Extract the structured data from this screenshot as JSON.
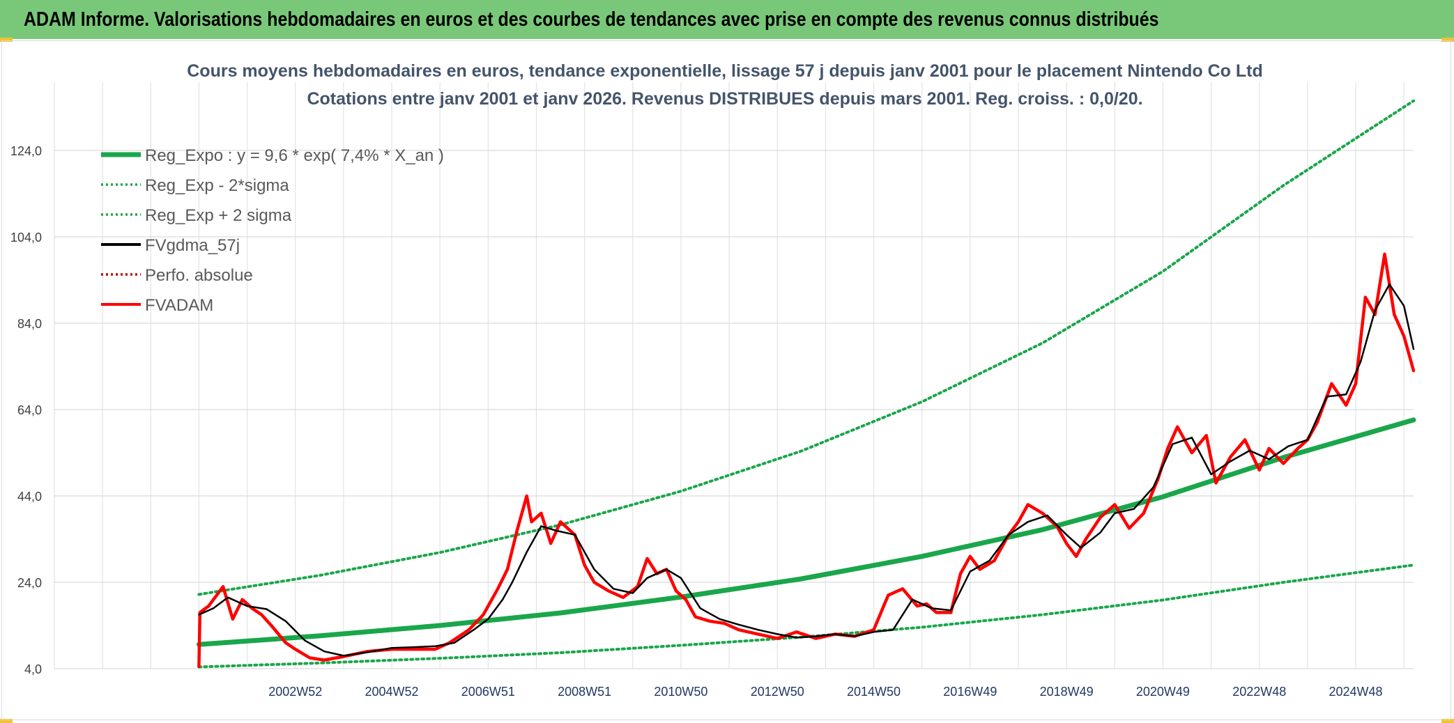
{
  "banner": {
    "title": "ADAM Informe. Valorisations hebdomadaires en euros et des courbes de tendances avec prise en compte des revenus connus distribués"
  },
  "chart_data": {
    "type": "line",
    "title": [
      "Cours moyens hebdomadaires en euros, tendance exponentielle, lissage 57 j depuis janv 2001 pour le placement Nintendo Co Ltd",
      "Cotations entre janv 2001 et janv 2026. Revenus DISTRIBUES depuis mars 2001. Reg. croiss. : 0,0/20."
    ],
    "xlabel": "",
    "ylabel": "",
    "ylim": [
      4,
      136
    ],
    "xlim": [
      1998.0,
      2026.2
    ],
    "grid": true,
    "legend_position": "top-left",
    "y_ticks": [
      "4,0",
      "24,0",
      "44,0",
      "64,0",
      "84,0",
      "104,0",
      "124,0"
    ],
    "x_tick_labels": [
      {
        "label": "2002W52",
        "x": 2003.0
      },
      {
        "label": "2004W52",
        "x": 2005.0
      },
      {
        "label": "2006W51",
        "x": 2007.0
      },
      {
        "label": "2008W51",
        "x": 2009.0
      },
      {
        "label": "2010W50",
        "x": 2011.0
      },
      {
        "label": "2012W50",
        "x": 2013.0
      },
      {
        "label": "2014W50",
        "x": 2015.0
      },
      {
        "label": "2016W49",
        "x": 2017.0
      },
      {
        "label": "2018W49",
        "x": 2019.0
      },
      {
        "label": "2020W49",
        "x": 2021.0
      },
      {
        "label": "2022W48",
        "x": 2023.0
      },
      {
        "label": "2024W48",
        "x": 2025.0
      }
    ],
    "series": [
      {
        "name": "Reg_Expo : y = 9,6 * exp( 7,4% *  X_an )",
        "color": "#1aa64a",
        "style": "solid-thick",
        "x": [
          2001.0,
          2003.5,
          2006.0,
          2008.5,
          2011.0,
          2013.5,
          2016.0,
          2018.5,
          2021.0,
          2023.5,
          2026.2
        ],
        "y": [
          9.6,
          11.6,
          14.0,
          16.9,
          20.6,
          24.8,
          30.0,
          36.2,
          43.8,
          52.9,
          61.6
        ]
      },
      {
        "name": "Reg_Exp - 2*sigma",
        "color": "#1aa64a",
        "style": "dotted",
        "x": [
          2001.0,
          2003.5,
          2006.0,
          2008.5,
          2011.0,
          2013.5,
          2016.0,
          2018.5,
          2021.0,
          2023.5,
          2026.2
        ],
        "y": [
          4.4,
          5.3,
          6.4,
          7.7,
          9.4,
          11.3,
          13.6,
          16.5,
          19.9,
          24.0,
          28.0
        ]
      },
      {
        "name": "Reg_Exp + 2 sigma",
        "color": "#1aa64a",
        "style": "dotted",
        "x": [
          2001.0,
          2003.5,
          2006.0,
          2008.5,
          2011.0,
          2013.5,
          2016.0,
          2018.5,
          2021.0,
          2023.5,
          2026.2
        ],
        "y": [
          21.2,
          25.6,
          30.9,
          37.3,
          45.1,
          54.4,
          65.8,
          79.4,
          96.0,
          115.9,
          135.5
        ]
      },
      {
        "name": "FVgdma_57j",
        "color": "#000000",
        "style": "solid",
        "x": [
          2001.0,
          2001.3,
          2001.6,
          2002.0,
          2002.4,
          2002.8,
          2003.2,
          2003.6,
          2004.0,
          2004.5,
          2005.0,
          2005.5,
          2005.9,
          2006.3,
          2006.7,
          2007.0,
          2007.3,
          2007.5,
          2007.8,
          2008.1,
          2008.4,
          2008.8,
          2009.2,
          2009.6,
          2010.0,
          2010.3,
          2010.7,
          2011.0,
          2011.4,
          2011.8,
          2012.2,
          2012.6,
          2013.0,
          2013.4,
          2013.8,
          2014.2,
          2014.6,
          2015.0,
          2015.4,
          2015.8,
          2016.2,
          2016.6,
          2017.0,
          2017.4,
          2017.8,
          2018.2,
          2018.6,
          2019.0,
          2019.3,
          2019.7,
          2020.0,
          2020.4,
          2020.8,
          2021.2,
          2021.6,
          2022.0,
          2022.4,
          2022.8,
          2023.2,
          2023.6,
          2024.0,
          2024.4,
          2024.8,
          2025.1,
          2025.4,
          2025.7,
          2026.0,
          2026.2
        ],
        "y": [
          16.5,
          18.0,
          20.5,
          18.5,
          17.8,
          15.0,
          10.5,
          8.0,
          7.0,
          7.8,
          8.8,
          9.0,
          9.2,
          10.0,
          13.0,
          15.5,
          20.0,
          24.0,
          31.0,
          37.0,
          36.0,
          35.0,
          27.0,
          22.5,
          21.5,
          25.0,
          27.0,
          25.0,
          18.0,
          15.5,
          14.2,
          13.0,
          12.0,
          11.2,
          11.5,
          12.0,
          11.5,
          12.5,
          13.0,
          20.0,
          18.0,
          17.5,
          26.5,
          29.0,
          35.0,
          38.0,
          39.5,
          35.0,
          32.0,
          35.5,
          40.0,
          41.0,
          46.0,
          56.0,
          57.5,
          49.0,
          52.0,
          54.5,
          52.5,
          55.5,
          57.0,
          67.0,
          67.5,
          75.0,
          87.0,
          93.0,
          88.0,
          78.0
        ]
      },
      {
        "name": "Perfo. absolue",
        "color": "#c00000",
        "style": "dotted",
        "x": [],
        "y": []
      },
      {
        "name": "FVADAM",
        "color": "#ff0000",
        "style": "solid-thick",
        "x": [
          2001.0,
          2001.02,
          2001.2,
          2001.5,
          2001.7,
          2001.9,
          2002.1,
          2002.3,
          2002.5,
          2002.8,
          2003.0,
          2003.3,
          2003.6,
          2004.0,
          2004.5,
          2005.0,
          2005.5,
          2005.9,
          2006.2,
          2006.6,
          2006.9,
          2007.2,
          2007.4,
          2007.6,
          2007.8,
          2007.9,
          2008.1,
          2008.3,
          2008.5,
          2008.8,
          2009.0,
          2009.2,
          2009.5,
          2009.8,
          2010.1,
          2010.3,
          2010.5,
          2010.7,
          2010.9,
          2011.1,
          2011.3,
          2011.6,
          2011.9,
          2012.2,
          2012.6,
          2013.0,
          2013.4,
          2013.8,
          2014.2,
          2014.6,
          2015.0,
          2015.3,
          2015.6,
          2015.9,
          2016.1,
          2016.3,
          2016.6,
          2016.8,
          2017.0,
          2017.2,
          2017.5,
          2017.8,
          2018.0,
          2018.2,
          2018.5,
          2018.8,
          2019.0,
          2019.2,
          2019.4,
          2019.7,
          2020.0,
          2020.3,
          2020.6,
          2020.9,
          2021.1,
          2021.3,
          2021.6,
          2021.9,
          2022.1,
          2022.4,
          2022.7,
          2023.0,
          2023.2,
          2023.5,
          2023.8,
          2024.0,
          2024.2,
          2024.5,
          2024.8,
          2025.0,
          2025.2,
          2025.4,
          2025.6,
          2025.8,
          2026.0,
          2026.2
        ],
        "y": [
          4.5,
          17.0,
          18.5,
          23.0,
          15.5,
          20.0,
          18.0,
          16.5,
          14.0,
          10.0,
          8.5,
          6.5,
          6.0,
          6.8,
          8.0,
          8.5,
          8.5,
          8.5,
          10.0,
          13.0,
          16.5,
          22.5,
          27.0,
          36.0,
          44.0,
          38.0,
          40.0,
          33.0,
          38.0,
          35.0,
          28.0,
          24.0,
          22.0,
          20.5,
          23.0,
          29.5,
          26.0,
          27.0,
          22.0,
          20.0,
          16.0,
          15.0,
          14.5,
          13.0,
          12.0,
          11.0,
          12.5,
          11.0,
          12.0,
          11.5,
          13.0,
          21.0,
          22.5,
          18.5,
          19.0,
          17.0,
          17.0,
          26.0,
          30.0,
          27.0,
          29.0,
          35.0,
          38.0,
          42.0,
          40.0,
          37.0,
          33.0,
          30.0,
          34.0,
          39.0,
          42.0,
          36.5,
          40.0,
          48.0,
          55.0,
          60.0,
          54.0,
          58.0,
          47.0,
          53.0,
          57.0,
          50.0,
          55.0,
          51.5,
          55.0,
          57.0,
          61.0,
          70.0,
          65.0,
          70.0,
          90.0,
          86.0,
          100.0,
          86.0,
          81.0,
          73.0
        ]
      }
    ]
  }
}
